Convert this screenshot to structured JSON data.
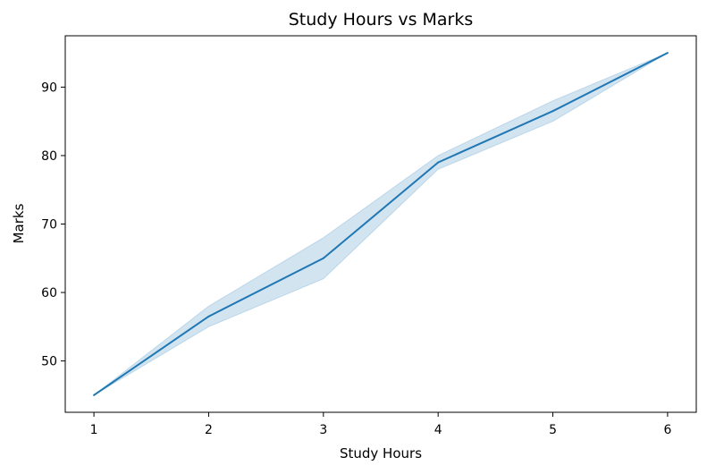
{
  "chart_data": {
    "type": "line",
    "title": "Study Hours vs Marks",
    "xlabel": "Study Hours",
    "ylabel": "Marks",
    "xlim": [
      0.75,
      6.25
    ],
    "ylim": [
      42.5,
      97.5
    ],
    "xticks": [
      1,
      2,
      3,
      4,
      5,
      6
    ],
    "yticks": [
      50,
      60,
      70,
      80,
      90
    ],
    "grid": false,
    "series": [
      {
        "x": [
          1,
          2,
          3,
          4,
          5,
          6
        ],
        "values": [
          45,
          56.5,
          65,
          79,
          86.5,
          95
        ],
        "ci_lower": [
          45,
          55,
          62,
          78,
          85,
          95
        ],
        "ci_upper": [
          45,
          58,
          68,
          80,
          88,
          95
        ],
        "color": "#1f77b4",
        "band_color": "#1f77b4"
      }
    ]
  }
}
